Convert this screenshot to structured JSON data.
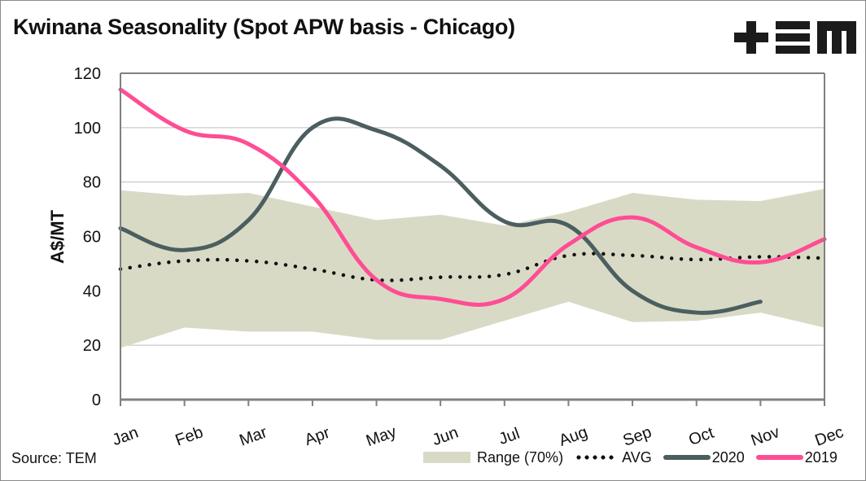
{
  "title": "Kwinana Seasonality (Spot APW basis - Chicago)",
  "logo": {
    "text": "+EM",
    "icon": "tem-logo-icon"
  },
  "source": "Source: TEM",
  "colors": {
    "range": "#d9dac6",
    "avg": "#111111",
    "y2020": "#4b5e60",
    "y2019": "#ff4d94",
    "grid": "#bdbdbd",
    "axis": "#808080"
  },
  "chart_data": {
    "type": "line",
    "title": "Kwinana Seasonality (Spot APW basis - Chicago)",
    "xlabel": "",
    "ylabel": "A$/MT",
    "ylim": [
      0,
      120
    ],
    "yticks": [
      0,
      20,
      40,
      60,
      80,
      100,
      120
    ],
    "grid": true,
    "legend_position": "bottom-right",
    "categories": [
      "Jan",
      "Feb",
      "Mar",
      "Apr",
      "May",
      "Jun",
      "Jul",
      "Aug",
      "Sep",
      "Oct",
      "Nov",
      "Dec"
    ],
    "range": {
      "name": "Range (70%)",
      "upper": [
        77,
        75,
        76,
        71,
        66,
        68,
        64,
        69,
        76,
        73.5,
        73,
        77.5
      ],
      "lower": [
        19,
        26.5,
        25,
        25,
        22,
        22,
        29,
        36,
        28.5,
        29,
        32,
        26.5
      ]
    },
    "series": [
      {
        "name": "AVG",
        "style": "dotted",
        "values": [
          48,
          51,
          51,
          48,
          44,
          45,
          46,
          53,
          53,
          51.5,
          52.5,
          52
        ]
      },
      {
        "name": "2020",
        "style": "solid",
        "values": [
          63,
          55,
          66,
          100,
          99,
          86,
          65.5,
          64,
          40,
          32,
          36,
          null
        ]
      },
      {
        "name": "2019",
        "style": "solid",
        "values": [
          114,
          99,
          94,
          75,
          44,
          37,
          37,
          57,
          67,
          56,
          50.5,
          59
        ]
      }
    ]
  },
  "legend": {
    "range_label": "Range (70%)",
    "avg_label": "AVG",
    "y2020_label": "2020",
    "y2019_label": "2019"
  }
}
